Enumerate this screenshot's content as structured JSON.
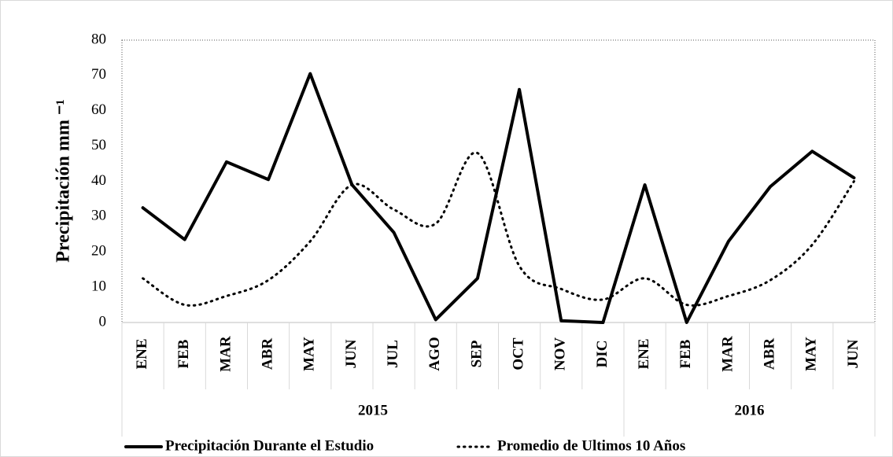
{
  "chart_data": {
    "type": "line",
    "ylabel": "Precipitación mm ⁻¹",
    "groups": [
      {
        "label": "2015",
        "categories": [
          "ENE",
          "FEB",
          "MAR",
          "ABR",
          "MAY",
          "JUN",
          "JUL",
          "AGO",
          "SEP",
          "OCT",
          "NOV",
          "DIC"
        ]
      },
      {
        "label": "2016",
        "categories": [
          "ENE",
          "FEB",
          "MAR",
          "ABR",
          "MAY",
          "JUN"
        ]
      }
    ],
    "series": [
      {
        "name": "Precipitación Durante el Estudio",
        "color": "#000000",
        "dash": "solid",
        "values": [
          32.5,
          23.5,
          45.5,
          40.5,
          70.5,
          39,
          25.5,
          0.8,
          12.5,
          66,
          0.5,
          0,
          39,
          0,
          23,
          38.5,
          48.5,
          41
        ]
      },
      {
        "name": "Promedio de Ultimos 10 Años",
        "color": "#000000",
        "dash": "dotted",
        "smooth": true,
        "values": [
          12.5,
          5,
          7.5,
          12,
          23,
          39,
          32,
          28,
          48,
          16,
          9.5,
          6.5,
          12.5,
          5,
          7.5,
          12,
          22,
          40
        ]
      }
    ],
    "ylim": [
      0,
      80
    ],
    "yticks": [
      0,
      10,
      20,
      30,
      40,
      50,
      60,
      70,
      80
    ],
    "grid": false,
    "legend": "bottom"
  }
}
